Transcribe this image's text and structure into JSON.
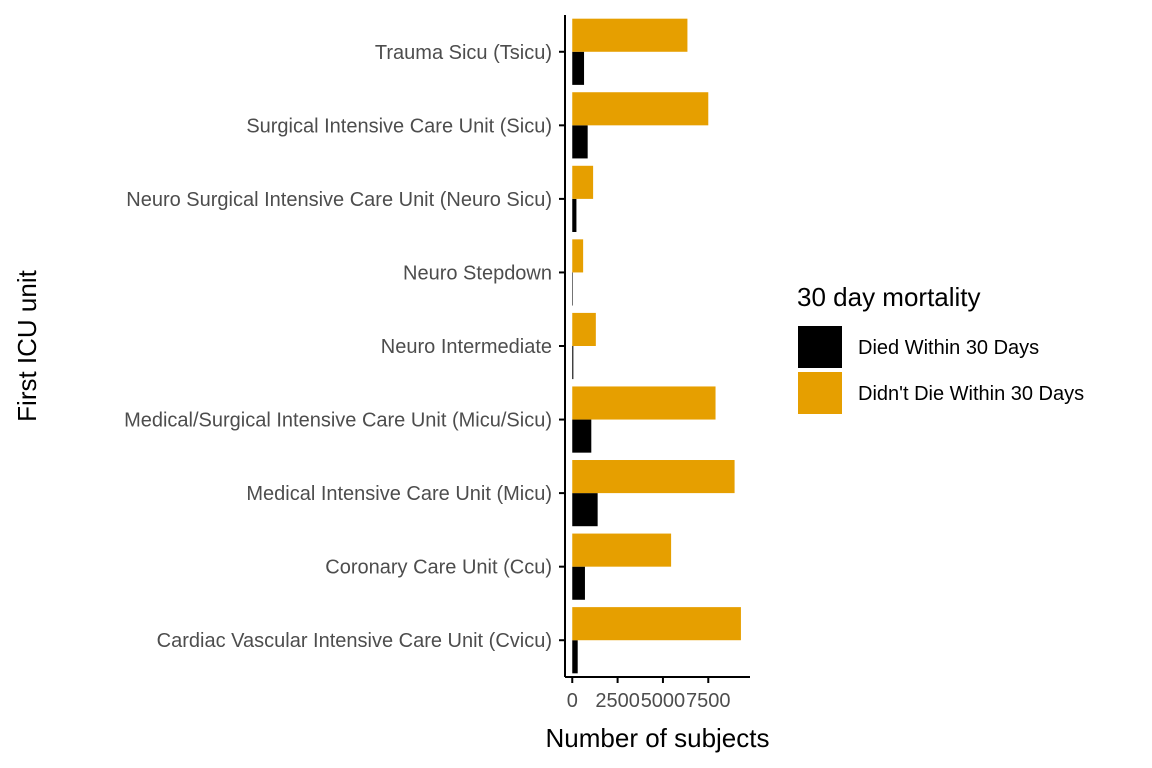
{
  "chart_data": {
    "type": "bar",
    "orientation": "horizontal",
    "categories": [
      "Cardiac Vascular Intensive Care Unit (Cvicu)",
      "Coronary Care Unit (Ccu)",
      "Medical Intensive Care Unit (Micu)",
      "Medical/Surgical Intensive Care Unit (Micu/Sicu)",
      "Neuro Intermediate",
      "Neuro Stepdown",
      "Neuro Surgical Intensive Care Unit (Neuro Sicu)",
      "Surgical Intensive Care Unit (Sicu)",
      "Trauma Sicu (Tsicu)"
    ],
    "series": [
      {
        "name": "Died Within 30 Days",
        "color": "#000000",
        "values": [
          300,
          700,
          1400,
          1050,
          60,
          30,
          230,
          850,
          650
        ]
      },
      {
        "name": "Didn't Die Within 30 Days",
        "color": "#E69F00",
        "values": [
          9300,
          5450,
          8950,
          7900,
          1300,
          600,
          1150,
          7500,
          6350
        ]
      }
    ],
    "xlabel": "Number of subjects",
    "ylabel": "First ICU unit",
    "xlim": [
      -400,
      9800
    ],
    "xticks": [
      0,
      2500,
      5000,
      7500
    ],
    "xtick_labels": [
      "0",
      "2500",
      "5000",
      "7500"
    ],
    "legend": {
      "title": "30 day mortality",
      "position": "right"
    },
    "grid": false
  }
}
